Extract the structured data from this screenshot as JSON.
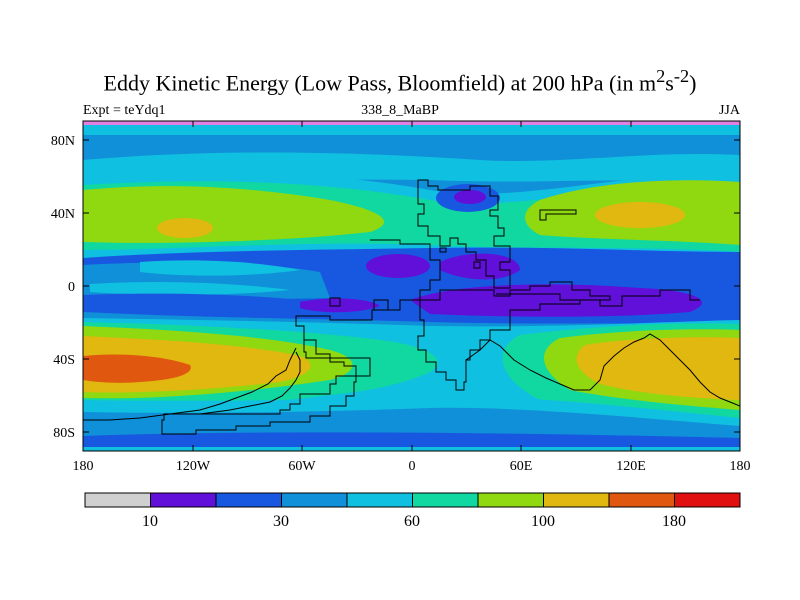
{
  "title": {
    "main": "Eddy Kinetic Energy (Low Pass, Bloomfield) at 200 hPa (in m",
    "sup1": "2",
    "mid": "s",
    "sup2": "-2",
    "end": ")"
  },
  "subtitle": {
    "left": "Expt = teYdq1",
    "center": "338_8_MaBP",
    "right": "JJA"
  },
  "axes": {
    "lat_labels": [
      "80N",
      "40N",
      "0",
      "40S",
      "80S"
    ],
    "lon_labels": [
      "180",
      "120W",
      "60W",
      "0",
      "60E",
      "120E",
      "180"
    ]
  },
  "colorbar": {
    "labels": [
      "10",
      "30",
      "60",
      "100",
      "180"
    ],
    "colors": [
      "#d0d0d0",
      "#6010d8",
      "#1858e0",
      "#1090d8",
      "#10c0e0",
      "#10d8a0",
      "#90d810",
      "#e0b810",
      "#e05810",
      "#e01010"
    ]
  },
  "field_colors": {
    "c0": "#6010d8",
    "c1": "#1858e0",
    "c2": "#1090d8",
    "c3": "#10c0e0",
    "c4": "#10d8a0",
    "c5": "#90d810",
    "c6": "#e0b810",
    "c7": "#e05810",
    "edge": "#e080e0"
  }
}
